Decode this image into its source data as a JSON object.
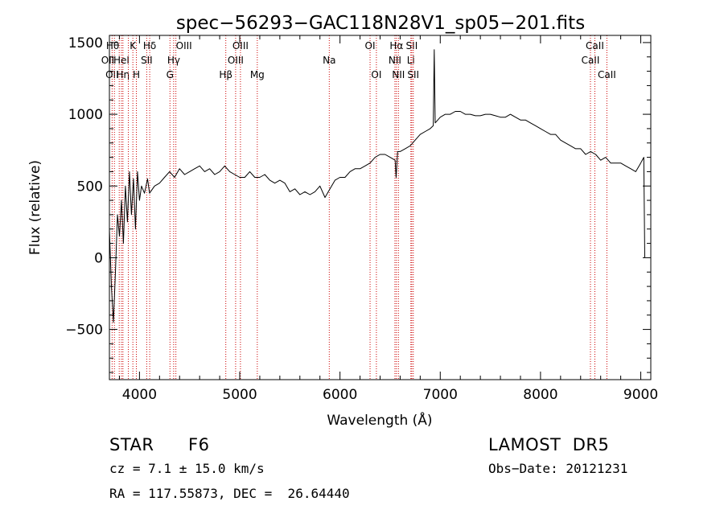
{
  "chart_data": {
    "type": "line",
    "title": "spec−56293−GAC118N28V1_sp05−201.fits",
    "xlabel": "Wavelength (Å)",
    "ylabel": "Flux (relative)",
    "xlim": [
      3700,
      9100
    ],
    "ylim": [
      -850,
      1550
    ],
    "xticks": [
      4000,
      5000,
      6000,
      7000,
      8000,
      9000
    ],
    "yticks": [
      -500,
      0,
      500,
      1000,
      1500
    ],
    "ytick_labels": [
      "−500",
      "0",
      "500",
      "1000",
      "1500"
    ],
    "grid": false,
    "series": [
      {
        "color": "#000000",
        "x": [
          3700,
          3720,
          3740,
          3760,
          3780,
          3800,
          3820,
          3840,
          3860,
          3880,
          3900,
          3920,
          3940,
          3960,
          3980,
          4000,
          4020,
          4050,
          4080,
          4100,
          4150,
          4200,
          4250,
          4300,
          4350,
          4400,
          4450,
          4500,
          4550,
          4600,
          4650,
          4700,
          4750,
          4800,
          4850,
          4900,
          4950,
          5000,
          5050,
          5100,
          5150,
          5200,
          5250,
          5300,
          5350,
          5400,
          5450,
          5500,
          5550,
          5600,
          5650,
          5700,
          5750,
          5800,
          5850,
          5900,
          5950,
          6000,
          6050,
          6100,
          6150,
          6200,
          6250,
          6300,
          6350,
          6400,
          6450,
          6500,
          6550,
          6560,
          6575,
          6600,
          6650,
          6700,
          6750,
          6800,
          6850,
          6900,
          6930,
          6940,
          6950,
          7000,
          7050,
          7100,
          7150,
          7200,
          7250,
          7300,
          7350,
          7400,
          7450,
          7500,
          7550,
          7600,
          7650,
          7700,
          7750,
          7800,
          7850,
          7900,
          7950,
          8000,
          8050,
          8100,
          8150,
          8200,
          8250,
          8300,
          8350,
          8400,
          8450,
          8500,
          8550,
          8600,
          8650,
          8700,
          8750,
          8800,
          8850,
          8900,
          8950,
          9000,
          9030,
          9040
        ],
        "y": [
          200,
          -200,
          -450,
          -100,
          300,
          150,
          400,
          100,
          500,
          250,
          600,
          300,
          550,
          200,
          600,
          400,
          500,
          450,
          550,
          450,
          500,
          520,
          560,
          600,
          560,
          620,
          580,
          600,
          620,
          640,
          600,
          620,
          580,
          600,
          640,
          600,
          580,
          560,
          560,
          600,
          560,
          560,
          580,
          540,
          520,
          540,
          520,
          460,
          480,
          440,
          460,
          440,
          460,
          500,
          420,
          480,
          540,
          560,
          560,
          600,
          620,
          620,
          640,
          660,
          700,
          720,
          720,
          700,
          680,
          560,
          740,
          740,
          760,
          780,
          820,
          860,
          880,
          900,
          920,
          1450,
          940,
          980,
          1000,
          1000,
          1020,
          1020,
          1000,
          1000,
          990,
          990,
          1000,
          1000,
          990,
          980,
          980,
          1000,
          980,
          960,
          960,
          940,
          920,
          900,
          880,
          860,
          860,
          820,
          800,
          780,
          760,
          760,
          720,
          740,
          720,
          680,
          700,
          660,
          660,
          660,
          640,
          620,
          600,
          660,
          700,
          0
        ]
      }
    ],
    "lines": [
      {
        "x": 3727,
        "label": "OII",
        "row": 2,
        "align": "middle"
      },
      {
        "x": 3750,
        "label": "OII",
        "row": 1,
        "align": "end"
      },
      {
        "x": 3798,
        "label": "Hθ",
        "row": 0,
        "align": "end"
      },
      {
        "x": 3820,
        "label": "HeI",
        "row": 1,
        "align": "middle"
      },
      {
        "x": 3835,
        "label": "Hη",
        "row": 2,
        "align": "middle"
      },
      {
        "x": 3889,
        "label": "",
        "row": 0,
        "align": "middle"
      },
      {
        "x": 3934,
        "label": "K",
        "row": 0,
        "align": "middle"
      },
      {
        "x": 3969,
        "label": "H",
        "row": 2,
        "align": "middle"
      },
      {
        "x": 4072,
        "label": "SII",
        "row": 1,
        "align": "middle"
      },
      {
        "x": 4102,
        "label": "Hδ",
        "row": 0,
        "align": "middle"
      },
      {
        "x": 4304,
        "label": "G",
        "row": 2,
        "align": "middle"
      },
      {
        "x": 4341,
        "label": "Hγ",
        "row": 1,
        "align": "middle"
      },
      {
        "x": 4363,
        "label": "OIII",
        "row": 0,
        "align": "start"
      },
      {
        "x": 4861,
        "label": "Hβ",
        "row": 2,
        "align": "middle"
      },
      {
        "x": 4959,
        "label": "OIII",
        "row": 1,
        "align": "middle"
      },
      {
        "x": 5007,
        "label": "OIII",
        "row": 0,
        "align": "middle"
      },
      {
        "x": 5175,
        "label": "Mg",
        "row": 2,
        "align": "middle"
      },
      {
        "x": 5893,
        "label": "Na",
        "row": 1,
        "align": "middle"
      },
      {
        "x": 6300,
        "label": "OI",
        "row": 0,
        "align": "middle"
      },
      {
        "x": 6363,
        "label": "OI",
        "row": 2,
        "align": "middle"
      },
      {
        "x": 6548,
        "label": "NII",
        "row": 1,
        "align": "middle"
      },
      {
        "x": 6563,
        "label": "Hα",
        "row": 0,
        "align": "middle"
      },
      {
        "x": 6583,
        "label": "NII",
        "row": 2,
        "align": "middle"
      },
      {
        "x": 6707,
        "label": "Li",
        "row": 1,
        "align": "middle"
      },
      {
        "x": 6716,
        "label": "SII",
        "row": 0,
        "align": "middle"
      },
      {
        "x": 6731,
        "label": "SII",
        "row": 2,
        "align": "middle"
      },
      {
        "x": 8498,
        "label": "CaII",
        "row": 1,
        "align": "middle"
      },
      {
        "x": 8542,
        "label": "CaII",
        "row": 0,
        "align": "middle"
      },
      {
        "x": 8662,
        "label": "CaII",
        "row": 2,
        "align": "middle"
      }
    ]
  },
  "info": {
    "class": "STAR",
    "subclass": "F6",
    "survey": "LAMOST  DR5",
    "cz": "cz = 7.1 ± 15.0 km/s",
    "obs_date": "Obs−Date: 20121231",
    "coords": "RA = 117.55873, DEC =  26.64440"
  },
  "colors": {
    "spectrum": "#000000",
    "line_markers": "#cc0000",
    "axes": "#000000"
  }
}
